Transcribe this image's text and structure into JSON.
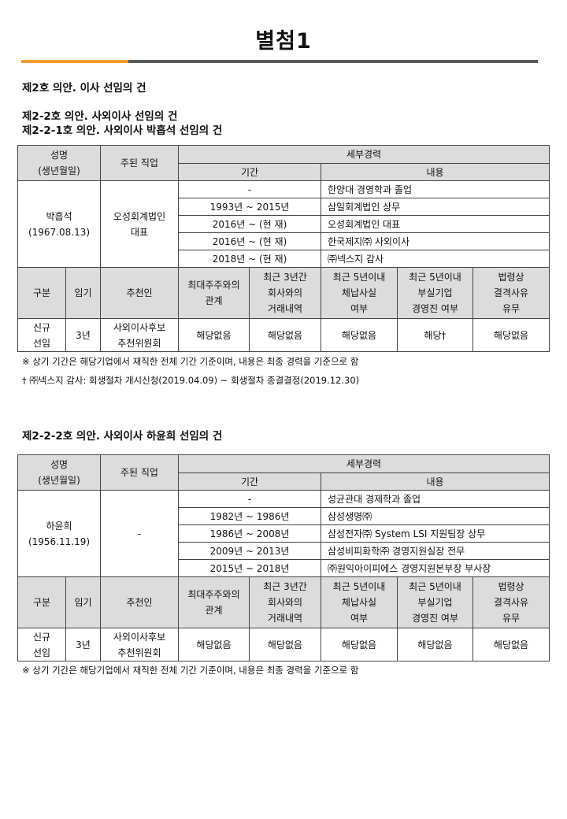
{
  "title": "별첨1",
  "headings": {
    "h1": "제2호 의안. 이사 선임의 건",
    "h2": "제2-2호 의안. 사외이사 선임의 건",
    "h3": "제2-2-1호 의안. 사외이사 박흡석 선임의 건",
    "h4": "제2-2-2호 의안. 사외이사 하윤희 선임의 건"
  },
  "headers": {
    "name": "성명",
    "birth": "(생년월일)",
    "job": "주된 직업",
    "career": "세부경력",
    "period": "기간",
    "content": "내용",
    "type": "구분",
    "term": "임기",
    "recommender": "추천인",
    "col1": [
      "최대주주와의",
      "관계"
    ],
    "col2": [
      "최근 3년간",
      "회사와의",
      "거래내역"
    ],
    "col3": [
      "최근 5년이내",
      "체납사실",
      "여부"
    ],
    "col4": [
      "최근 5년이내",
      "부실기업",
      "경영진 여부"
    ],
    "col5": [
      "법령상",
      "결격사유",
      "유무"
    ]
  },
  "candidates": [
    {
      "name": "박흡석",
      "birth": "(1967.08.13)",
      "job": [
        "오성회계법인",
        "대표"
      ],
      "career": [
        [
          "-",
          "한양대 경영학과 졸업"
        ],
        [
          "1993년 ~ 2015년",
          "삼일회계법인 상무"
        ],
        [
          "2016년 ~ (현   재)",
          "오성회계법인 대표"
        ],
        [
          "2016년 ~ (현   재)",
          "한국제지㈜ 사외이사"
        ],
        [
          "2018년 ~ (현   재)",
          "㈜넥스지 감사"
        ]
      ],
      "row": {
        "type": [
          "신규",
          "선임"
        ],
        "term": "3년",
        "recommender": [
          "사외이사후보",
          "추천위원회"
        ],
        "v": [
          "해당없음",
          "해당없음",
          "해당없음",
          "해당†",
          "해당없음"
        ]
      }
    },
    {
      "name": "하윤희",
      "birth": "(1956.11.19)",
      "job": [
        "-",
        ""
      ],
      "career": [
        [
          "-",
          "성균관대 경제학과 졸업"
        ],
        [
          "1982년 ~ 1986년",
          "삼성생명㈜"
        ],
        [
          "1986년 ~ 2008년",
          "삼성전자㈜ System LSI 지원팀장 상무"
        ],
        [
          "2009년 ~ 2013년",
          "삼성비피화학㈜ 경영지원실장 전무"
        ],
        [
          "2015년 ~ 2018년",
          "㈜원익아이피에스 경영지원본부장 부사장"
        ]
      ],
      "row": {
        "type": [
          "신규",
          "선임"
        ],
        "term": "3년",
        "recommender": [
          "사외이사후보",
          "추천위원회"
        ],
        "v": [
          "해당없음",
          "해당없음",
          "해당없음",
          "해당없음",
          "해당없음"
        ]
      }
    }
  ],
  "notes": {
    "n1": "※ 상기 기간은 해당기업에서 재직한 전체 기간 기준이며, 내용은 최종 경력을 기준으로 함",
    "n2": "† ㈜넥스지 감사: 회생절차 개시신청(2019.04.09) ~ 회생절차 종결결정(2019.12.30)",
    "n3": "※ 상기 기간은 해당기업에서 재직한 전체 기간 기준이며, 내용은 최종 경력을 기준으로 함"
  },
  "colors": {
    "accent": "#f39a2b",
    "rule": "#5a5a5a",
    "header_bg": "#dcdcdc"
  }
}
